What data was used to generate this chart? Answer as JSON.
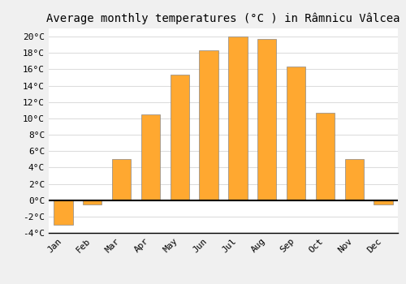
{
  "title": "Average monthly temperatures (°C ) in Râmnicu Vâlcea",
  "months": [
    "Jan",
    "Feb",
    "Mar",
    "Apr",
    "May",
    "Jun",
    "Jul",
    "Aug",
    "Sep",
    "Oct",
    "Nov",
    "Dec"
  ],
  "values": [
    -3.0,
    -0.5,
    5.0,
    10.5,
    15.3,
    18.3,
    20.0,
    19.7,
    16.3,
    10.7,
    5.0,
    -0.5
  ],
  "bar_color": "#FFA830",
  "bar_edge_color": "#888888",
  "ylim": [
    -4,
    21
  ],
  "yticks": [
    -4,
    -2,
    0,
    2,
    4,
    6,
    8,
    10,
    12,
    14,
    16,
    18,
    20
  ],
  "background_color": "#f0f0f0",
  "plot_bg_color": "#ffffff",
  "grid_color": "#dddddd",
  "title_fontsize": 10,
  "tick_fontsize": 8,
  "zero_line_color": "#000000",
  "bar_width": 0.65
}
